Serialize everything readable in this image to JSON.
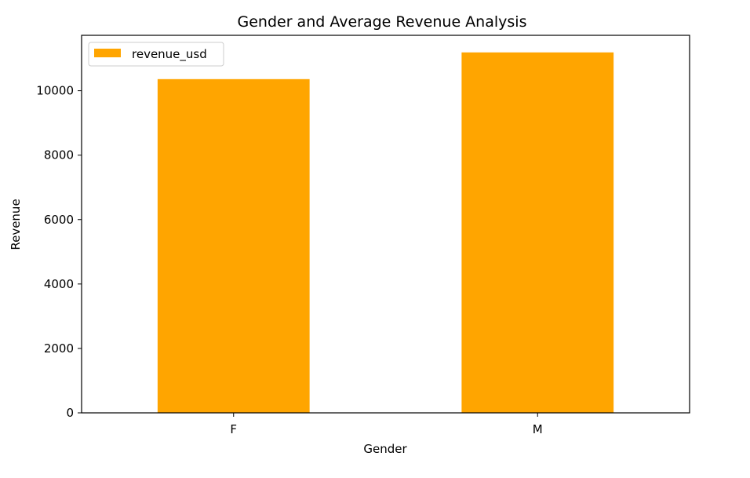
{
  "chart_data": {
    "type": "bar",
    "title": "Gender and Average Revenue Analysis",
    "xlabel": "Gender",
    "ylabel": "Revenue",
    "categories": [
      "F",
      "M"
    ],
    "series": [
      {
        "name": "revenue_usd",
        "values": [
          10360,
          11190
        ],
        "color": "#ffa500"
      }
    ],
    "ylim": [
      0,
      11720
    ],
    "yticks": [
      0,
      2000,
      4000,
      6000,
      8000,
      10000
    ],
    "ytick_labels": [
      "0",
      "2000",
      "4000",
      "6000",
      "8000",
      "10000"
    ],
    "grid": false,
    "legend_position": "upper left"
  }
}
